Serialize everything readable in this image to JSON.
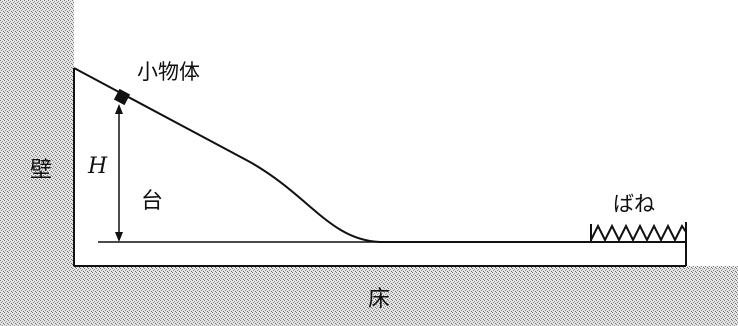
{
  "labels": {
    "object": "小物体",
    "height": "H",
    "wall": "壁",
    "platform": "台",
    "spring": "ばね",
    "floor": "床"
  },
  "colors": {
    "stroke": "#111111",
    "hatch": "#8a8a8a"
  }
}
